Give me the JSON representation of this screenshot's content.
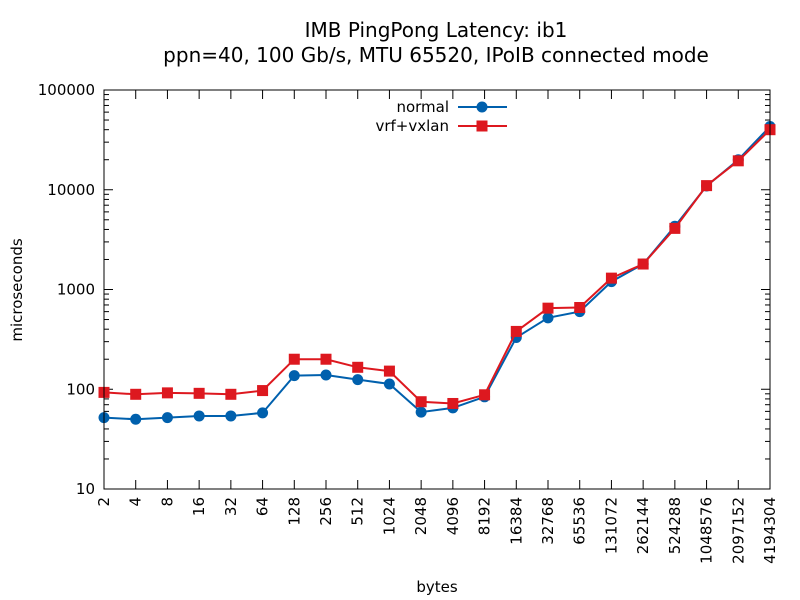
{
  "chart_data": {
    "type": "line",
    "title": "IMB PingPong Latency: ib1",
    "subtitle": "ppn=40, 100 Gb/s, MTU 65520, IPoIB connected mode",
    "xlabel": "bytes",
    "ylabel": "microseconds",
    "xscale": "log",
    "yscale": "log",
    "ylim": [
      10,
      100000
    ],
    "grid": false,
    "legend_position": "top-center",
    "x": [
      2,
      4,
      8,
      16,
      32,
      64,
      128,
      256,
      512,
      1024,
      2048,
      4096,
      8192,
      16384,
      32768,
      65536,
      131072,
      262144,
      524288,
      1048576,
      2097152,
      4194304
    ],
    "x_tick_labels": [
      "2",
      "4",
      "8",
      "16",
      "32",
      "64",
      "128",
      "256",
      "512",
      "1024",
      "2048",
      "4096",
      "8192",
      "16384",
      "32768",
      "65536",
      "131072",
      "262144",
      "524288",
      "1048576",
      "2097152",
      "4194304"
    ],
    "y_tick_labels": [
      "10",
      "100",
      "1000",
      "10000",
      "100000"
    ],
    "y_ticks": [
      10,
      100,
      1000,
      10000,
      100000
    ],
    "series": [
      {
        "name": "normal",
        "color": "#0060ad",
        "marker": "circle",
        "values": [
          52,
          50,
          52,
          54,
          54,
          58,
          137,
          139,
          125,
          113,
          59,
          65,
          84,
          330,
          520,
          600,
          1200,
          1800,
          4300,
          10900,
          20000,
          43000
        ]
      },
      {
        "name": "vrf+vxlan",
        "color": "#dd181f",
        "marker": "square",
        "values": [
          93,
          89,
          92,
          91,
          89,
          97,
          200,
          200,
          166,
          152,
          75,
          72,
          88,
          380,
          650,
          660,
          1300,
          1800,
          4100,
          11000,
          19500,
          40000
        ]
      }
    ]
  }
}
